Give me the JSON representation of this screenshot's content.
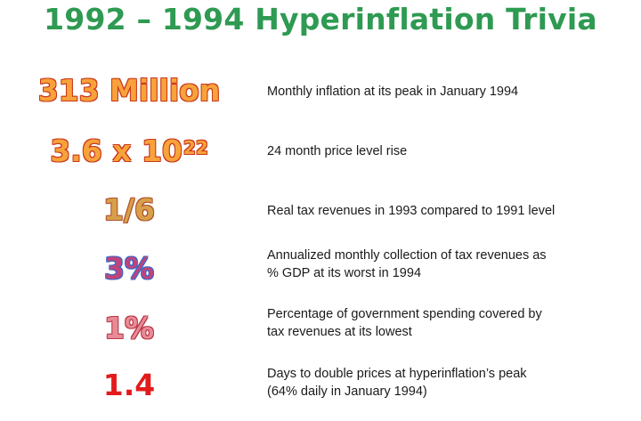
{
  "title": "1992 – 1994 Hyperinflation Trivia",
  "rows": [
    {
      "figure": "313 Million",
      "description": "Monthly inflation at its peak in January 1994"
    },
    {
      "figure_base": "3.6 x 10",
      "figure_exponent": "22",
      "description": "24 month price level rise"
    },
    {
      "figure": "1/6",
      "description": "Real tax revenues in 1993 compared to 1991 level"
    },
    {
      "figure": "3%",
      "description_line1": "Annualized monthly collection of tax revenues as",
      "description_line2": "% GDP at its worst in 1994"
    },
    {
      "figure": "1%",
      "description_line1": "Percentage of government spending covered by",
      "description_line2": "tax revenues at its lowest"
    },
    {
      "figure": "1.4",
      "description_line1": "Days to double prices at hyperinflation’s peak",
      "description_line2": "(64% daily in January 1994)"
    }
  ],
  "colors": {
    "title": "#2e9a52",
    "figure_1": "#f7a23a",
    "figure_2": "#f0b040",
    "figure_3": "#d7a04a",
    "figure_4": "#c0447a",
    "figure_5": "#e98a98",
    "figure_6": "#e31b1b"
  }
}
